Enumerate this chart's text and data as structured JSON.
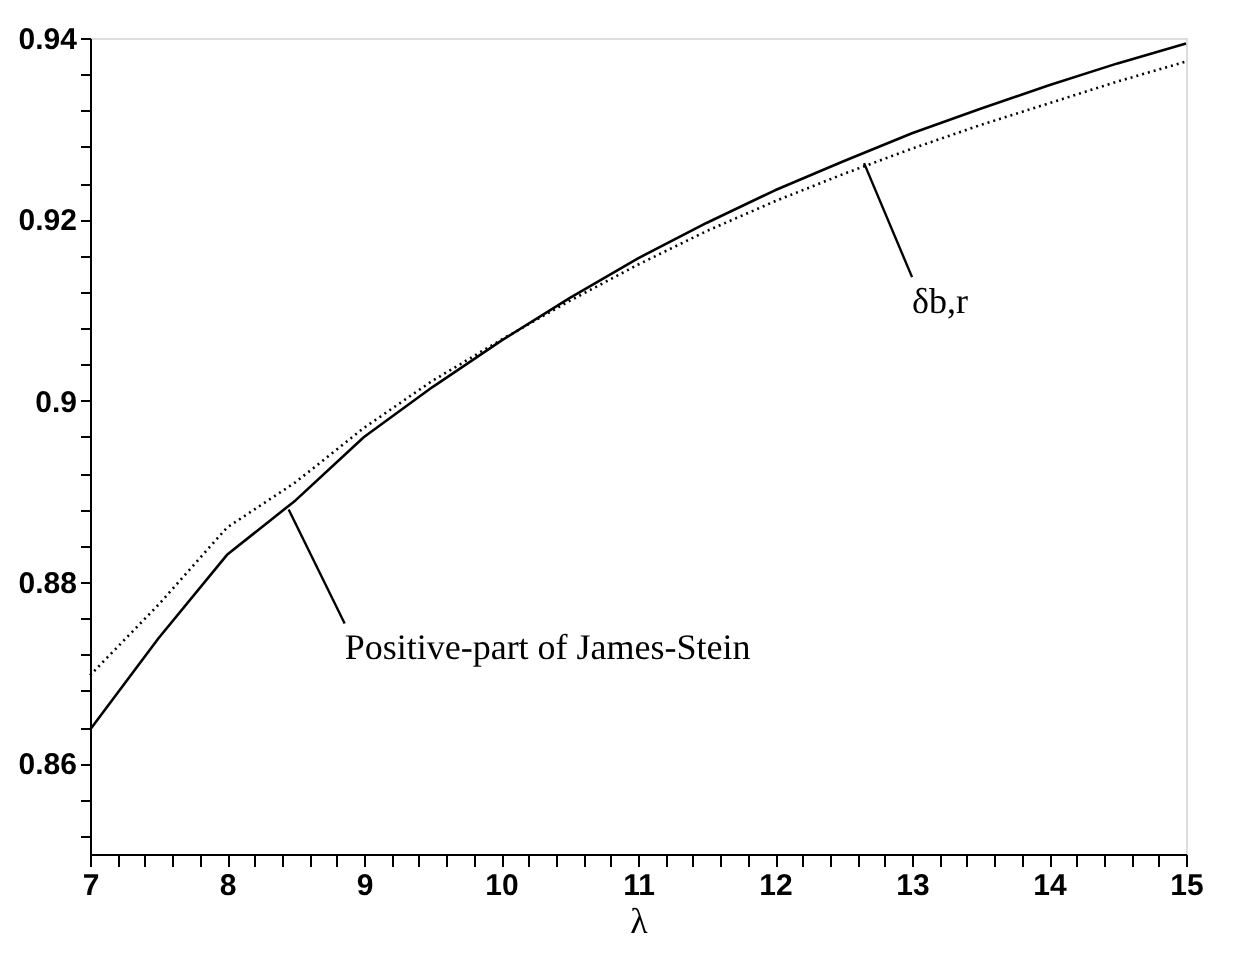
{
  "chart_data": {
    "type": "line",
    "xlabel": "λ",
    "x": [
      7,
      7.5,
      8,
      8.5,
      9,
      9.5,
      10,
      10.5,
      11,
      11.5,
      12,
      12.5,
      13,
      13.5,
      14,
      14.5,
      15
    ],
    "series": [
      {
        "color": "#000000",
        "line_style": "solid",
        "values": [
          0.8637,
          0.8738,
          0.883,
          0.889,
          0.896,
          0.9015,
          0.9066,
          0.9113,
          0.9157,
          0.9196,
          0.9232,
          0.9264,
          0.9295,
          0.9322,
          0.9348,
          0.9372,
          0.9394
        ]
      },
      {
        "color": "#000000",
        "line_style": "dotted",
        "values": [
          0.8697,
          0.8775,
          0.886,
          0.891,
          0.897,
          0.9022,
          0.9067,
          0.911,
          0.915,
          0.9187,
          0.922,
          0.925,
          0.9278,
          0.9304,
          0.9328,
          0.9352,
          0.9374
        ]
      }
    ],
    "annotations": [
      {
        "text": "Positive-part of James-Stein",
        "x": 8.45,
        "y": 0.888
      },
      {
        "text": "δb,r",
        "x": 12.65,
        "y": 0.9262
      }
    ],
    "xlim": [
      7,
      15
    ],
    "ylim": [
      0.85,
      0.94
    ],
    "xticks": [
      7,
      {
        "value": 7.2,
        "label": null
      },
      {
        "value": 7.4,
        "label": null
      },
      {
        "value": 7.6,
        "label": null
      },
      {
        "value": 7.8,
        "label": null
      },
      8,
      {
        "value": 8.2,
        "label": null
      },
      {
        "value": 8.4,
        "label": null
      },
      {
        "value": 8.6,
        "label": null
      },
      {
        "value": 8.8,
        "label": null
      },
      9,
      {
        "value": 9.2,
        "label": null
      },
      {
        "value": 9.4,
        "label": null
      },
      {
        "value": 9.6,
        "label": null
      },
      {
        "value": 9.8,
        "label": null
      },
      10,
      {
        "value": 10.2,
        "label": null
      },
      {
        "value": 10.4,
        "label": null
      },
      {
        "value": 10.6,
        "label": null
      },
      {
        "value": 10.8,
        "label": null
      },
      11,
      {
        "value": 11.2,
        "label": null
      },
      {
        "value": 11.4,
        "label": null
      },
      {
        "value": 11.6,
        "label": null
      },
      {
        "value": 11.8,
        "label": null
      },
      12,
      {
        "value": 12.2,
        "label": null
      },
      {
        "value": 12.4,
        "label": null
      },
      {
        "value": 12.6,
        "label": null
      },
      {
        "value": 12.8,
        "label": null
      },
      13,
      {
        "value": 13.2,
        "label": null
      },
      {
        "value": 13.4,
        "label": null
      },
      {
        "value": 13.6,
        "label": null
      },
      {
        "value": 13.8,
        "label": null
      },
      14,
      {
        "value": 14.2,
        "label": null
      },
      {
        "value": 14.4,
        "label": null
      },
      {
        "value": 14.6,
        "label": null
      },
      {
        "value": 14.8,
        "label": null
      },
      15
    ],
    "yticks": [
      {
        "value": 0.852,
        "label": null
      },
      {
        "value": 0.856,
        "label": null
      },
      0.86,
      {
        "value": 0.864,
        "label": null
      },
      {
        "value": 0.868,
        "label": null
      },
      {
        "value": 0.872,
        "label": null
      },
      {
        "value": 0.876,
        "label": null
      },
      0.88,
      {
        "value": 0.884,
        "label": null
      },
      {
        "value": 0.888,
        "label": null
      },
      {
        "value": 0.892,
        "label": null
      },
      {
        "value": 0.896,
        "label": null
      },
      0.9,
      {
        "value": 0.904,
        "label": null
      },
      {
        "value": 0.908,
        "label": null
      },
      {
        "value": 0.912,
        "label": null
      },
      {
        "value": 0.916,
        "label": null
      },
      0.92,
      {
        "value": 0.924,
        "label": null
      },
      {
        "value": 0.928,
        "label": null
      },
      {
        "value": 0.932,
        "label": null
      },
      {
        "value": 0.936,
        "label": null
      },
      0.94
    ],
    "grid": false
  }
}
